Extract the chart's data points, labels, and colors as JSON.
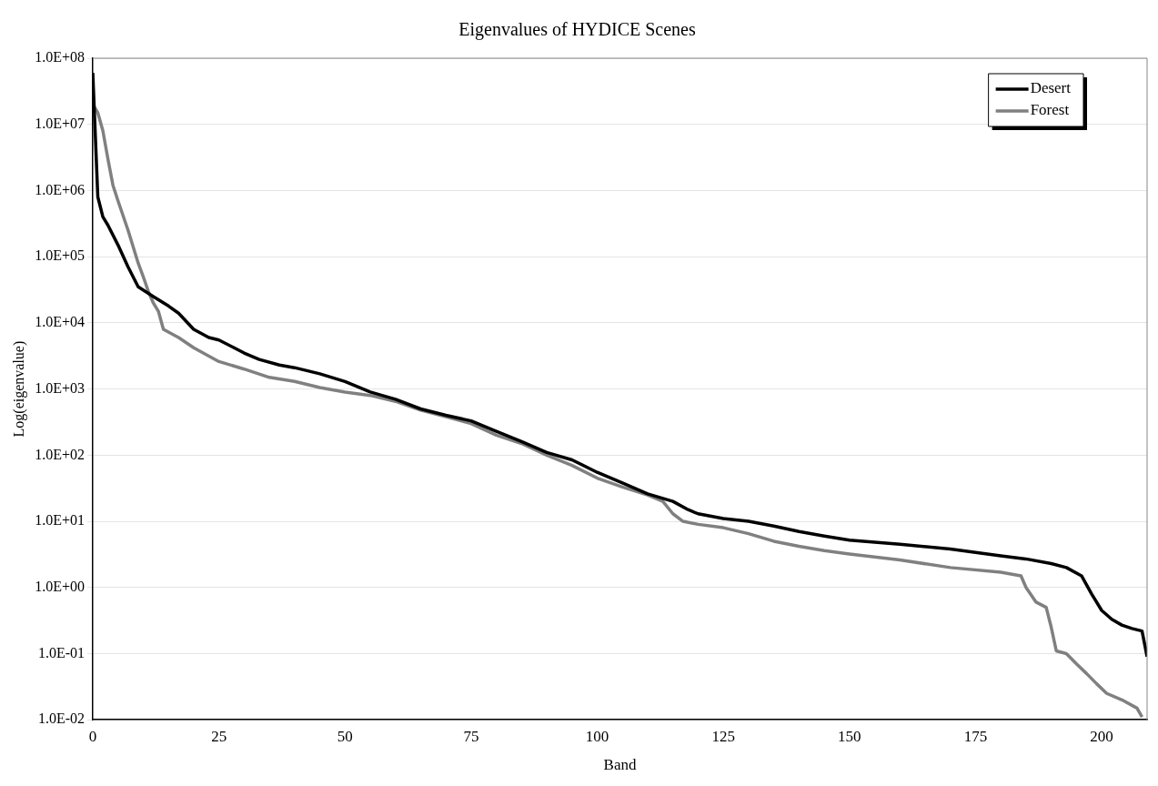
{
  "chart_data": {
    "type": "line",
    "title": "Eigenvalues of HYDICE Scenes",
    "xlabel": "Band",
    "ylabel": "Log(eigenvalue)",
    "log": "y",
    "grid": "y",
    "legend": "top right",
    "marker": "none",
    "line_style": "solid",
    "xlim": [
      0,
      209
    ],
    "xticks": [
      0,
      25,
      50,
      75,
      100,
      125,
      150,
      175,
      200
    ],
    "ylim": [
      0.01,
      100000000
    ],
    "yticks": [
      {
        "value": 0.01,
        "label": "1.0E-02"
      },
      {
        "value": 0.1,
        "label": "1.0E-01"
      },
      {
        "value": 1,
        "label": "1.0E+00"
      },
      {
        "value": 10,
        "label": "1.0E+01"
      },
      {
        "value": 100,
        "label": "1.0E+02"
      },
      {
        "value": 1000,
        "label": "1.0E+03"
      },
      {
        "value": 10000,
        "label": "1.0E+04"
      },
      {
        "value": 100000,
        "label": "1.0E+05"
      },
      {
        "value": 1000000,
        "label": "1.0E+06"
      },
      {
        "value": 10000000,
        "label": "1.0E+07"
      },
      {
        "value": 100000000,
        "label": "1.0E+08"
      }
    ],
    "series": [
      {
        "name": "Desert",
        "color": "#000000",
        "x": [
          0,
          1,
          2,
          3,
          5,
          7,
          9,
          12,
          15,
          17,
          20,
          23,
          25,
          28,
          30,
          33,
          37,
          40,
          45,
          50,
          55,
          60,
          65,
          70,
          75,
          80,
          85,
          90,
          95,
          100,
          105,
          110,
          115,
          118,
          120,
          125,
          130,
          135,
          140,
          145,
          150,
          160,
          170,
          180,
          185,
          190,
          193,
          196,
          198,
          200,
          202,
          204,
          206,
          208,
          209
        ],
        "values": [
          60000000,
          800000,
          400000,
          300000,
          150000,
          70000,
          35000,
          25000,
          18000,
          14000,
          8000,
          6000,
          5500,
          4200,
          3500,
          2800,
          2300,
          2100,
          1700,
          1300,
          900,
          700,
          500,
          400,
          330,
          230,
          160,
          110,
          85,
          55,
          38,
          26,
          20,
          15,
          13,
          11,
          10,
          8.5,
          7,
          6,
          5.2,
          4.5,
          3.8,
          3,
          2.7,
          2.3,
          2,
          1.5,
          0.8,
          0.45,
          0.33,
          0.27,
          0.24,
          0.22,
          0.09
        ]
      },
      {
        "name": "Forest",
        "color": "#808080",
        "x": [
          0,
          1,
          2,
          3,
          4,
          5,
          7,
          9,
          10,
          11,
          12,
          13,
          14,
          17,
          20,
          25,
          30,
          35,
          40,
          45,
          50,
          55,
          60,
          65,
          70,
          75,
          80,
          85,
          90,
          95,
          100,
          105,
          110,
          113,
          115,
          117,
          120,
          125,
          130,
          135,
          140,
          145,
          150,
          160,
          170,
          180,
          184,
          185,
          187,
          189,
          190,
          191,
          193,
          195,
          197,
          199,
          201,
          204,
          207,
          208
        ],
        "values": [
          20000000,
          15000000,
          8000000,
          3000000,
          1200000,
          700000,
          250000,
          80000,
          50000,
          30000,
          20000,
          15000,
          8000,
          6000,
          4200,
          2600,
          2000,
          1500,
          1300,
          1050,
          900,
          800,
          650,
          480,
          380,
          300,
          200,
          150,
          100,
          70,
          45,
          33,
          25,
          20,
          13,
          10,
          9,
          8,
          6.5,
          5,
          4.2,
          3.6,
          3.2,
          2.6,
          2,
          1.7,
          1.5,
          1,
          0.6,
          0.5,
          0.25,
          0.11,
          0.1,
          0.07,
          0.05,
          0.035,
          0.025,
          0.02,
          0.015,
          0.011
        ]
      }
    ]
  }
}
